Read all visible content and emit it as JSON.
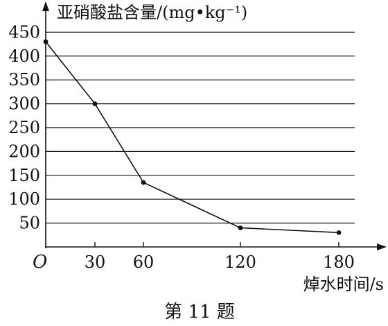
{
  "chart_data": {
    "type": "line",
    "ylabel": "亚硝酸盐含量/(mg•kg⁻¹)",
    "xlabel": "焯水时间/s",
    "origin_label": "O",
    "x": [
      0,
      30,
      60,
      120,
      180
    ],
    "y": [
      430,
      300,
      135,
      40,
      30
    ],
    "x_ticks": [
      30,
      60,
      120,
      180
    ],
    "y_ticks": [
      50,
      100,
      150,
      200,
      250,
      300,
      350,
      400,
      450
    ],
    "xlim": [
      0,
      190
    ],
    "ylim": [
      0,
      475
    ],
    "grid": "horizontal",
    "line_color": "#111111"
  },
  "caption": "第 11 题"
}
